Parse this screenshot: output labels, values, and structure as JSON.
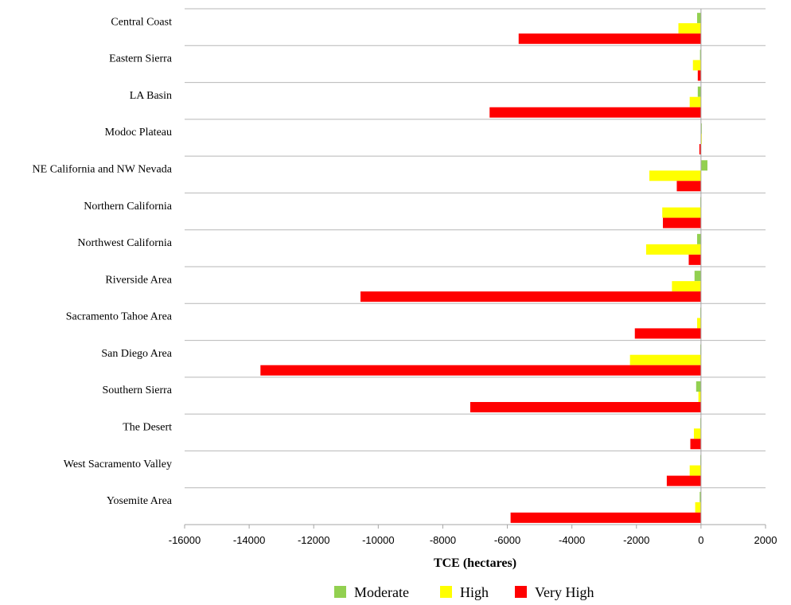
{
  "chart_data": {
    "type": "bar",
    "orientation": "horizontal",
    "title": "",
    "xlabel": "TCE (hectares)",
    "ylabel": "",
    "xlim": [
      -16000,
      2000
    ],
    "xticks": [
      "-16000",
      "-14000",
      "-12000",
      "-10000",
      "-8000",
      "-6000",
      "-4000",
      "-2000",
      "0",
      "2000"
    ],
    "grid": "horizontal separators between categories",
    "legend_position": "bottom",
    "categories": [
      "Central Coast",
      "Eastern Sierra",
      "LA Basin",
      "Modoc Plateau",
      "NE California and NW Nevada",
      "Northern California",
      "Northwest California",
      "Riverside Area",
      "Sacramento Tahoe Area",
      "San Diego Area",
      "Southern Sierra",
      "The Desert",
      "West Sacramento Valley",
      "Yosemite Area"
    ],
    "series": [
      {
        "name": "Moderate",
        "color": "#92d050",
        "values": [
          -120,
          -30,
          -100,
          10,
          200,
          -20,
          -120,
          -200,
          -20,
          -20,
          -150,
          -20,
          -20,
          -40
        ]
      },
      {
        "name": "High",
        "color": "#ffff00",
        "values": [
          -700,
          -250,
          -350,
          0,
          -1600,
          -1200,
          -1700,
          -900,
          -120,
          -2200,
          -80,
          -220,
          -350,
          -180
        ]
      },
      {
        "name": "Very High",
        "color": "#ff0000",
        "values": [
          -5650,
          -100,
          -6550,
          -50,
          -750,
          -1180,
          -380,
          -10550,
          -2050,
          -13650,
          -7150,
          -330,
          -1060,
          -5900
        ]
      }
    ]
  }
}
